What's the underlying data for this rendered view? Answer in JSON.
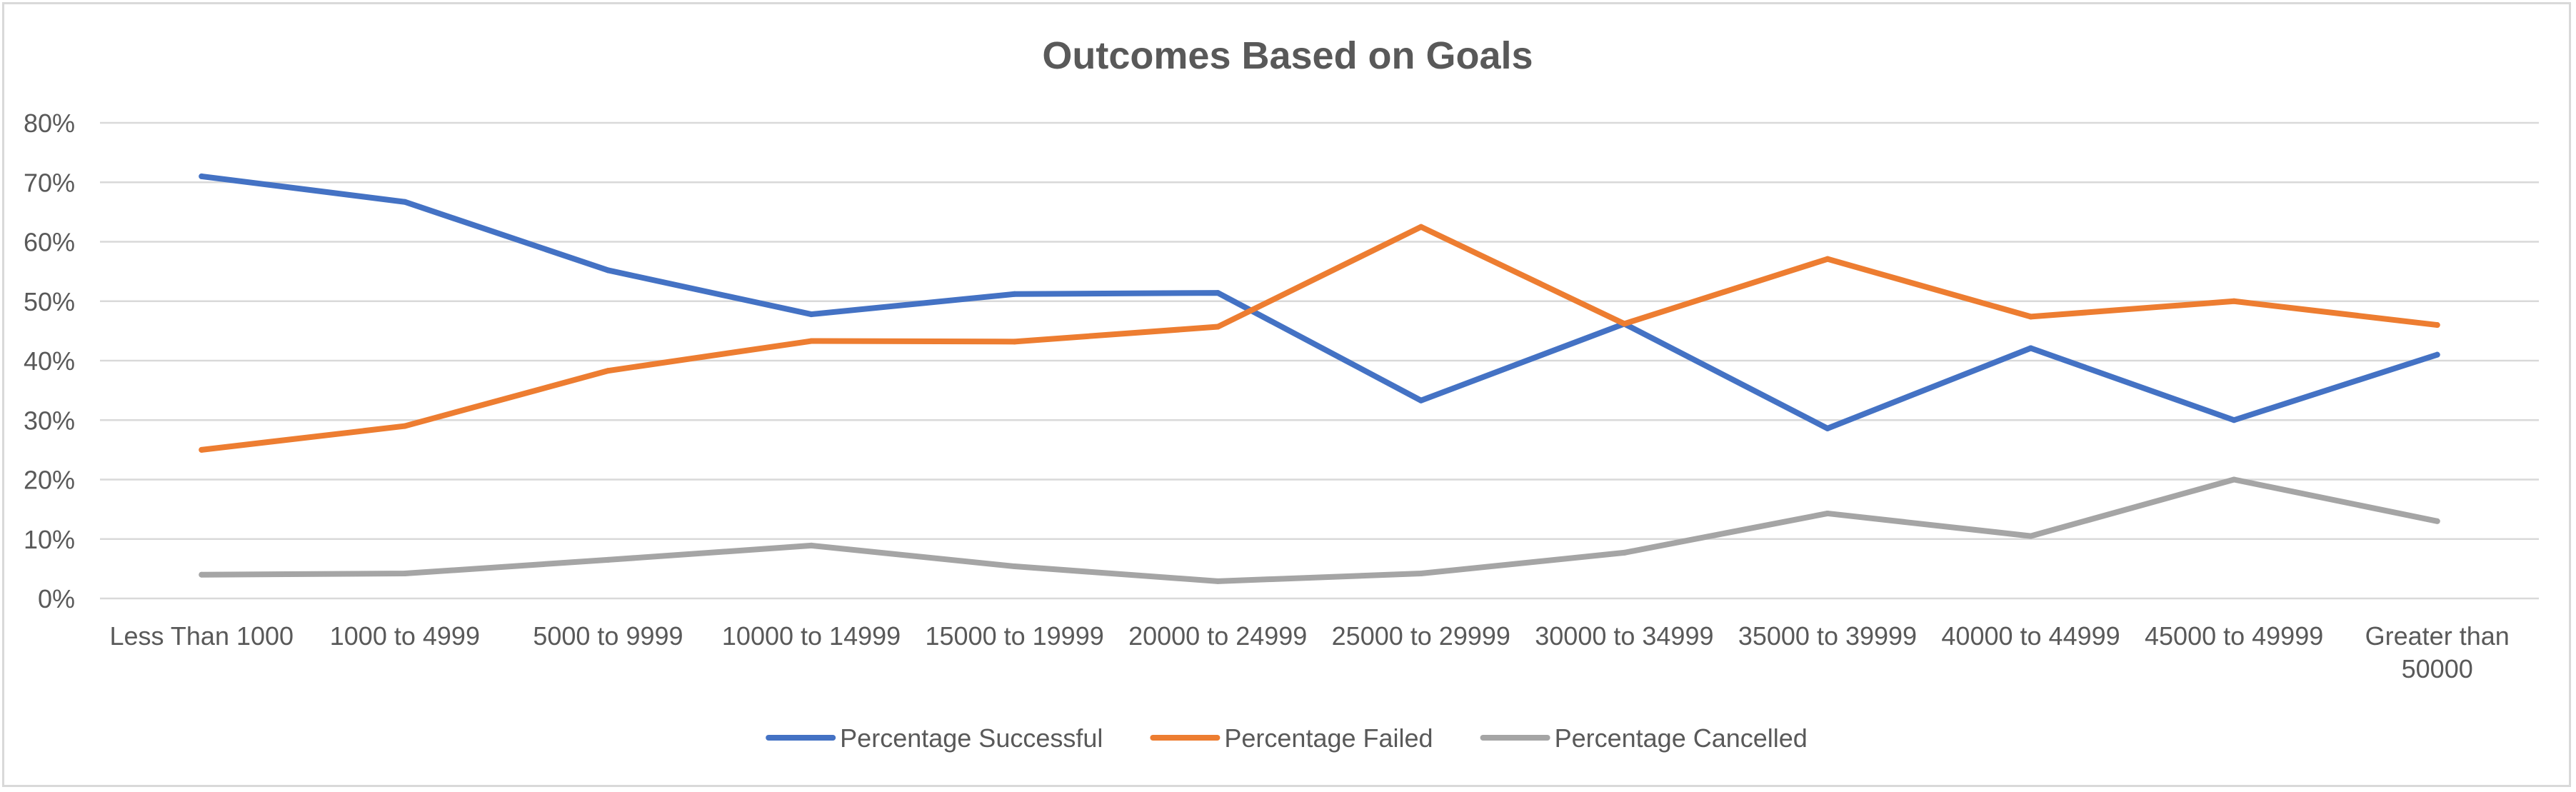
{
  "chart_data": {
    "type": "line",
    "title": "Outcomes Based on Goals",
    "categories": [
      "Less Than 1000",
      "1000 to 4999",
      "5000 to 9999",
      "10000 to 14999",
      "15000 to 19999",
      "20000 to 24999",
      "25000 to 29999",
      "30000 to 34999",
      "35000 to 39999",
      "40000 to 44999",
      "45000 to 49999",
      "Greater than 50000"
    ],
    "y_ticks": [
      "0%",
      "10%",
      "20%",
      "30%",
      "40%",
      "50%",
      "60%",
      "70%",
      "80%"
    ],
    "ylim": [
      0,
      0.8
    ],
    "grid": true,
    "legend_position": "bottom",
    "series": [
      {
        "name": "Percentage Successful",
        "color": "#4472c4",
        "values": [
          0.71,
          0.667,
          0.552,
          0.478,
          0.512,
          0.514,
          0.333,
          0.462,
          0.286,
          0.421,
          0.3,
          0.41
        ]
      },
      {
        "name": "Percentage Failed",
        "color": "#ed7d31",
        "values": [
          0.25,
          0.29,
          0.383,
          0.433,
          0.432,
          0.457,
          0.625,
          0.462,
          0.571,
          0.474,
          0.5,
          0.46
        ]
      },
      {
        "name": "Percentage Cancelled",
        "color": "#a5a5a5",
        "values": [
          0.04,
          0.042,
          0.065,
          0.089,
          0.054,
          0.029,
          0.042,
          0.077,
          0.143,
          0.105,
          0.2,
          0.13
        ]
      }
    ]
  }
}
